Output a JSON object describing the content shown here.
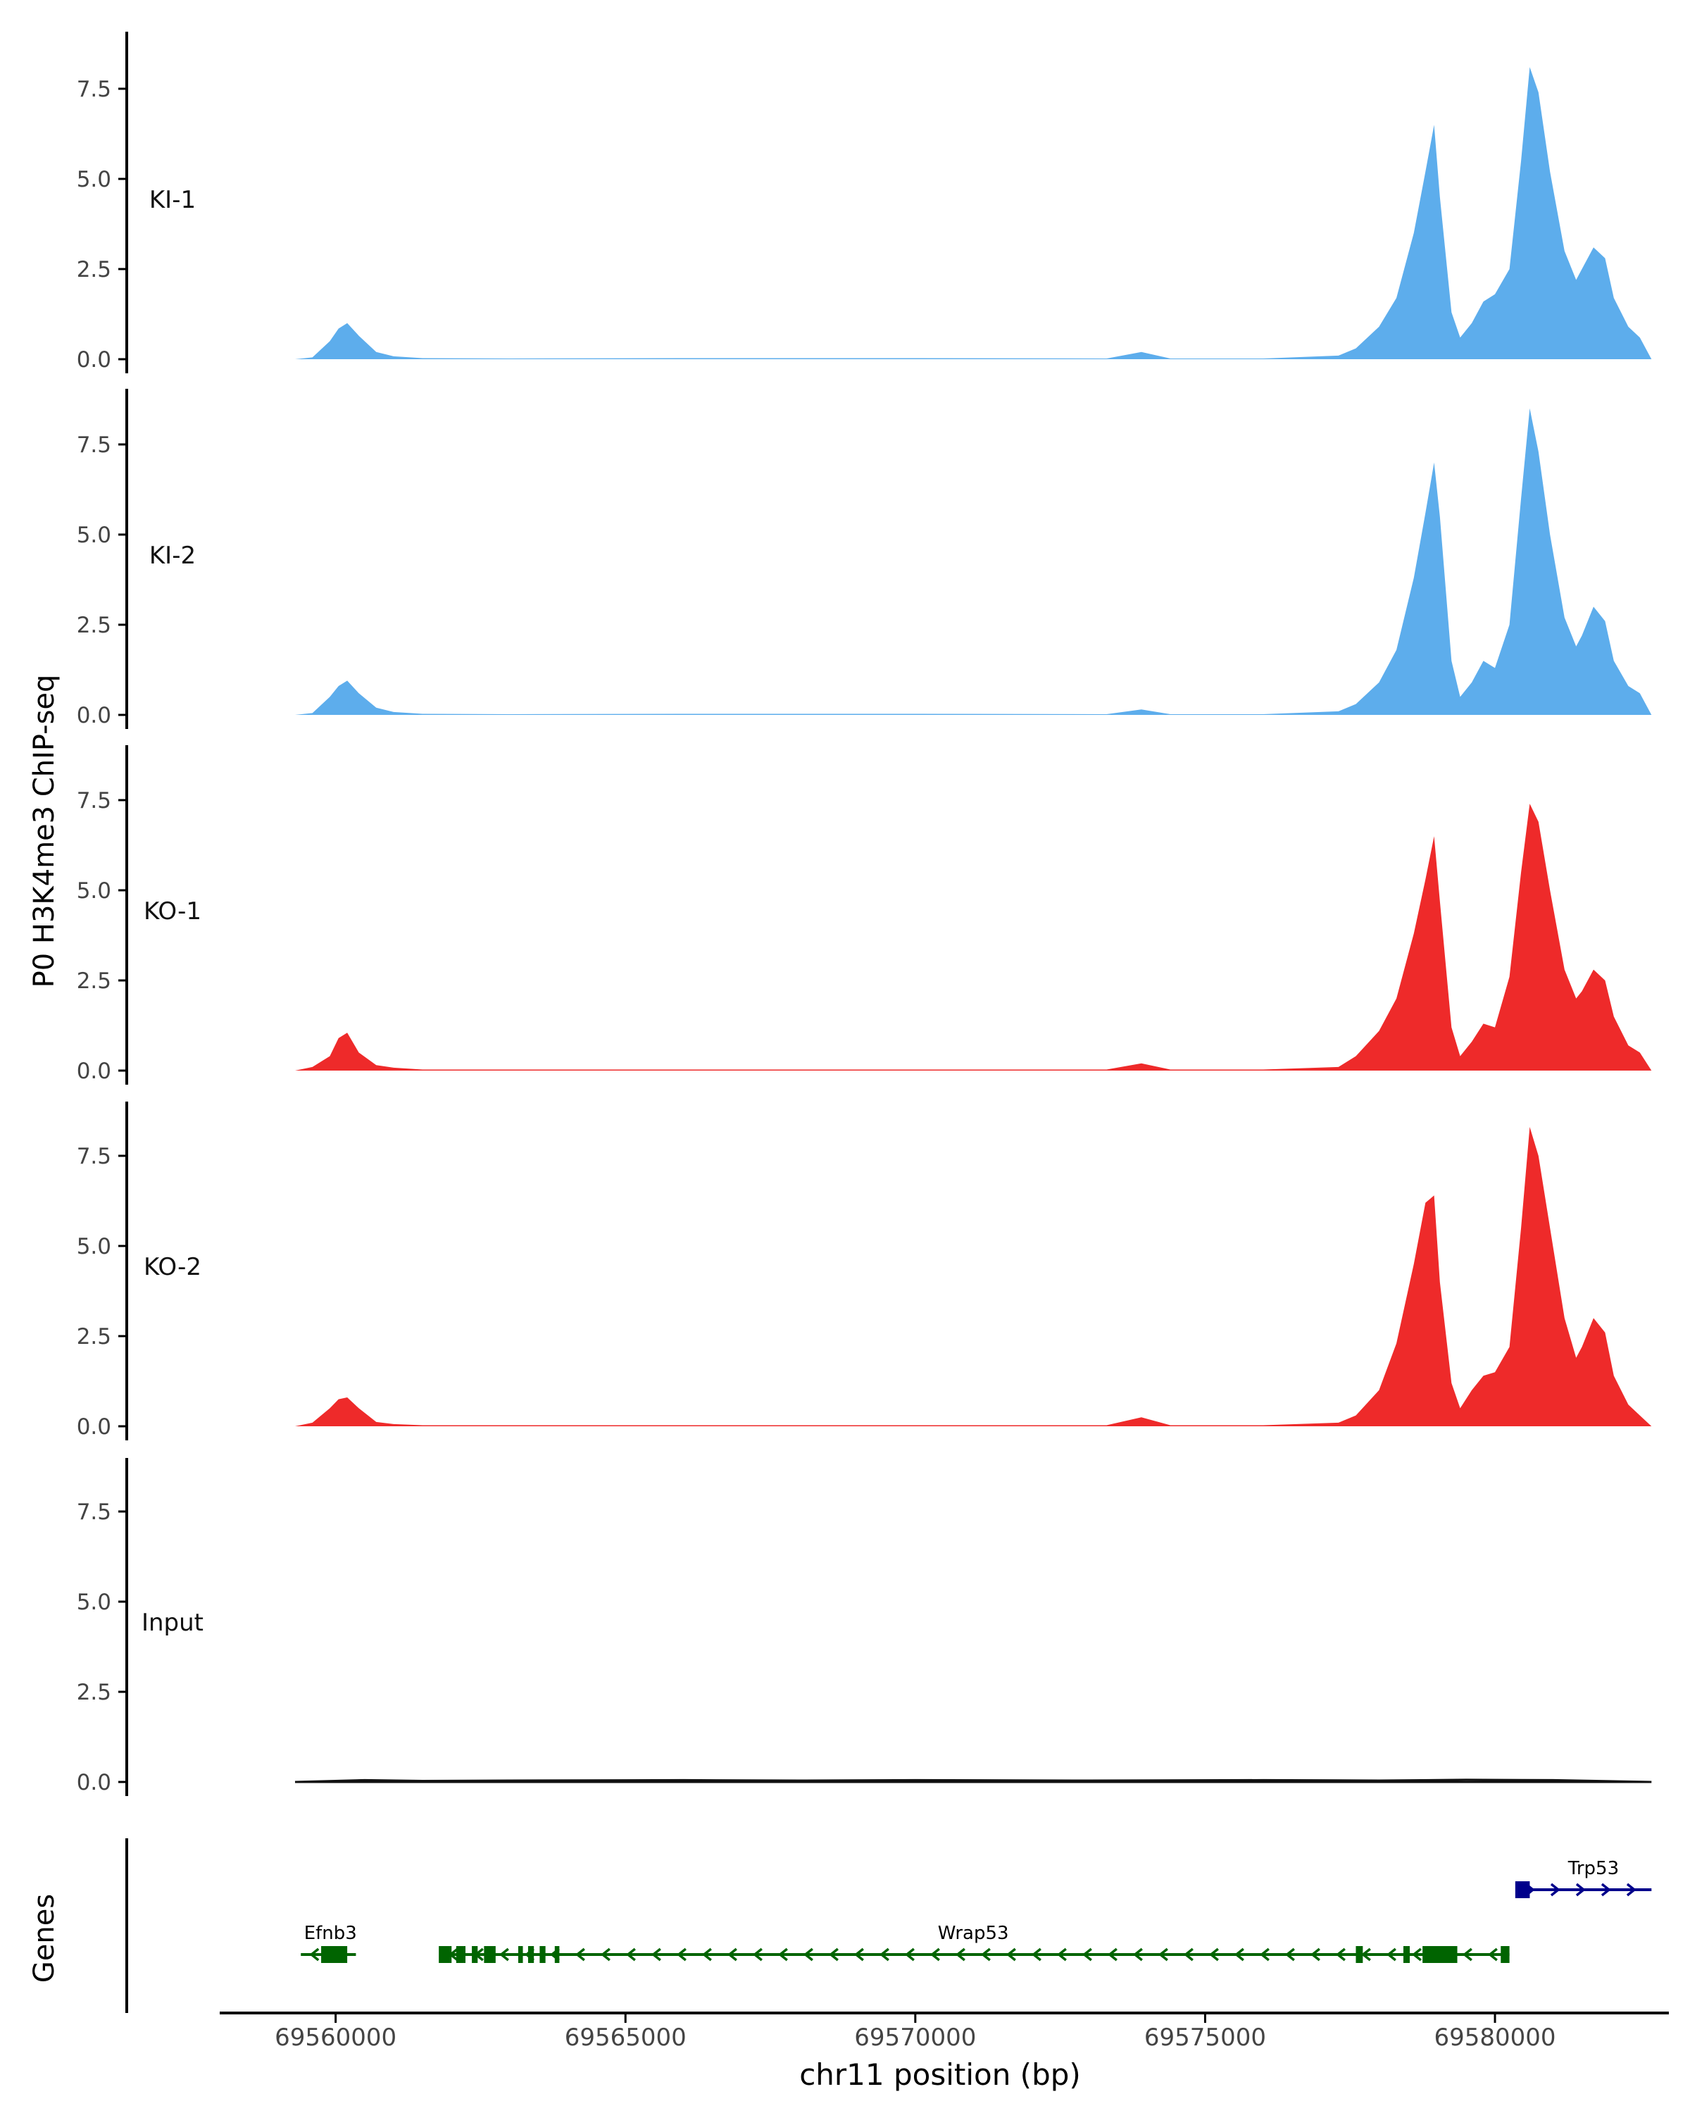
{
  "chart_data": {
    "type": "area",
    "region": "chr11",
    "y_axis_title": "P0 H3K4me3 ChIP-seq",
    "x_axis_title": "chr11 position (bp)",
    "xlim": [
      69558000,
      69583000
    ],
    "x_ticks": [
      69560000,
      69565000,
      69570000,
      69575000,
      69580000
    ],
    "x_tick_labels": [
      "69560000",
      "69565000",
      "69570000",
      "69575000",
      "69580000"
    ],
    "ylim": [
      0,
      9
    ],
    "y_ticks": [
      0,
      2.5,
      5,
      7.5
    ],
    "y_tick_labels": [
      "0.0",
      "2.5",
      "5.0",
      "7.5"
    ],
    "colors": {
      "KI": "#5DADEC",
      "KO": "#EE2A2A",
      "Input": "#111111",
      "gene_forward": "#00008B",
      "gene_reverse": "#006400",
      "axis": "#000000",
      "tick_label": "#444444"
    },
    "tracks": [
      {
        "name": "KI-1",
        "group": "KI",
        "x": [
          69559300,
          69559600,
          69559900,
          69560050,
          69560200,
          69560400,
          69560700,
          69561000,
          69561500,
          69563000,
          69566000,
          69570000,
          69573300,
          69573900,
          69574400,
          69576000,
          69577300,
          69577600,
          69578000,
          69578300,
          69578600,
          69578800,
          69578950,
          69579050,
          69579250,
          69579400,
          69579600,
          69579800,
          69580000,
          69580250,
          69580450,
          69580600,
          69580750,
          69580950,
          69581200,
          69581400,
          69581500,
          69581700,
          69581900,
          69582050,
          69582300,
          69582500,
          69582700
        ],
        "y": [
          0,
          0.05,
          0.5,
          0.85,
          1.0,
          0.65,
          0.2,
          0.08,
          0.03,
          0.02,
          0.03,
          0.03,
          0.02,
          0.2,
          0.02,
          0.02,
          0.1,
          0.3,
          0.9,
          1.7,
          3.5,
          5.2,
          6.5,
          4.5,
          1.3,
          0.6,
          1.0,
          1.6,
          1.8,
          2.5,
          5.5,
          8.1,
          7.4,
          5.2,
          3.0,
          2.2,
          2.5,
          3.1,
          2.8,
          1.7,
          0.9,
          0.6,
          0
        ]
      },
      {
        "name": "KI-2",
        "group": "KI",
        "x": [
          69559300,
          69559600,
          69559900,
          69560050,
          69560200,
          69560400,
          69560700,
          69561000,
          69561500,
          69563000,
          69566000,
          69570000,
          69573300,
          69573900,
          69574400,
          69576000,
          69577300,
          69577600,
          69578000,
          69578300,
          69578600,
          69578800,
          69578950,
          69579050,
          69579250,
          69579400,
          69579600,
          69579800,
          69580000,
          69580250,
          69580450,
          69580600,
          69580750,
          69580950,
          69581200,
          69581400,
          69581500,
          69581700,
          69581900,
          69582050,
          69582300,
          69582500,
          69582700
        ],
        "y": [
          0,
          0.05,
          0.5,
          0.8,
          0.95,
          0.6,
          0.2,
          0.08,
          0.03,
          0.02,
          0.03,
          0.03,
          0.02,
          0.15,
          0.02,
          0.02,
          0.1,
          0.3,
          0.9,
          1.8,
          3.8,
          5.6,
          7.0,
          5.5,
          1.5,
          0.5,
          0.9,
          1.5,
          1.3,
          2.5,
          6.0,
          8.5,
          7.3,
          5.0,
          2.7,
          1.9,
          2.2,
          3.0,
          2.6,
          1.5,
          0.8,
          0.6,
          0
        ]
      },
      {
        "name": "KO-1",
        "group": "KO",
        "x": [
          69559300,
          69559600,
          69559900,
          69560050,
          69560200,
          69560400,
          69560700,
          69561000,
          69561500,
          69563000,
          69566000,
          69570000,
          69573300,
          69573900,
          69574400,
          69576000,
          69577300,
          69577600,
          69578000,
          69578300,
          69578600,
          69578800,
          69578950,
          69579050,
          69579250,
          69579400,
          69579600,
          69579800,
          69580000,
          69580250,
          69580450,
          69580600,
          69580750,
          69580950,
          69581200,
          69581400,
          69581500,
          69581700,
          69581900,
          69582050,
          69582300,
          69582500,
          69582700
        ],
        "y": [
          0,
          0.1,
          0.4,
          0.9,
          1.05,
          0.5,
          0.15,
          0.08,
          0.03,
          0.03,
          0.03,
          0.03,
          0.03,
          0.2,
          0.03,
          0.03,
          0.1,
          0.4,
          1.1,
          2.0,
          3.8,
          5.3,
          6.5,
          4.7,
          1.2,
          0.4,
          0.8,
          1.3,
          1.2,
          2.6,
          5.5,
          7.4,
          6.9,
          5.0,
          2.8,
          2.0,
          2.2,
          2.8,
          2.5,
          1.5,
          0.7,
          0.5,
          0
        ]
      },
      {
        "name": "KO-2",
        "group": "KO",
        "x": [
          69559300,
          69559600,
          69559900,
          69560050,
          69560200,
          69560400,
          69560700,
          69561000,
          69561500,
          69563000,
          69566000,
          69570000,
          69573300,
          69573900,
          69574400,
          69576000,
          69577300,
          69577600,
          69578000,
          69578300,
          69578600,
          69578800,
          69578950,
          69579050,
          69579250,
          69579400,
          69579600,
          69579800,
          69580000,
          69580250,
          69580450,
          69580600,
          69580750,
          69580950,
          69581200,
          69581400,
          69581500,
          69581700,
          69581900,
          69582050,
          69582300,
          69582500,
          69582700
        ],
        "y": [
          0,
          0.1,
          0.5,
          0.75,
          0.8,
          0.5,
          0.12,
          0.06,
          0.03,
          0.03,
          0.03,
          0.03,
          0.03,
          0.25,
          0.03,
          0.03,
          0.1,
          0.3,
          1.0,
          2.3,
          4.5,
          6.2,
          6.4,
          4.0,
          1.2,
          0.5,
          1.0,
          1.4,
          1.5,
          2.2,
          5.5,
          8.3,
          7.5,
          5.5,
          3.0,
          1.9,
          2.2,
          3.0,
          2.6,
          1.4,
          0.6,
          0.3,
          0
        ]
      },
      {
        "name": "Input",
        "group": "Input",
        "x": [
          69559300,
          69560500,
          69561500,
          69563000,
          69566000,
          69568000,
          69570000,
          69573000,
          69576000,
          69578000,
          69579500,
          69581000,
          69582700
        ],
        "y": [
          0,
          0.05,
          0.03,
          0.04,
          0.05,
          0.04,
          0.05,
          0.04,
          0.05,
          0.04,
          0.06,
          0.05,
          0
        ]
      }
    ],
    "genes_panel_label": "Genes",
    "genes": [
      {
        "name": "Trp53",
        "strand": "+",
        "start": 69580400,
        "end": 69582700,
        "row": 1,
        "exons": [
          [
            69580350,
            69580600
          ]
        ]
      },
      {
        "name": "Efnb3",
        "strand": "-",
        "start": 69559400,
        "end": 69560350,
        "row": 0,
        "exons": [
          [
            69559750,
            69560200
          ]
        ]
      },
      {
        "name": "Wrap53",
        "strand": "-",
        "start": 69561800,
        "end": 69580250,
        "row": 0,
        "exons": [
          [
            69561780,
            69562000
          ],
          [
            69562080,
            69562240
          ],
          [
            69562350,
            69562450
          ],
          [
            69562560,
            69562760
          ],
          [
            69563150,
            69563230
          ],
          [
            69563320,
            69563420
          ],
          [
            69563520,
            69563620
          ],
          [
            69563780,
            69563860
          ],
          [
            69577600,
            69577720
          ],
          [
            69578420,
            69578530
          ],
          [
            69578750,
            69579350
          ],
          [
            69580100,
            69580250
          ]
        ]
      }
    ]
  }
}
